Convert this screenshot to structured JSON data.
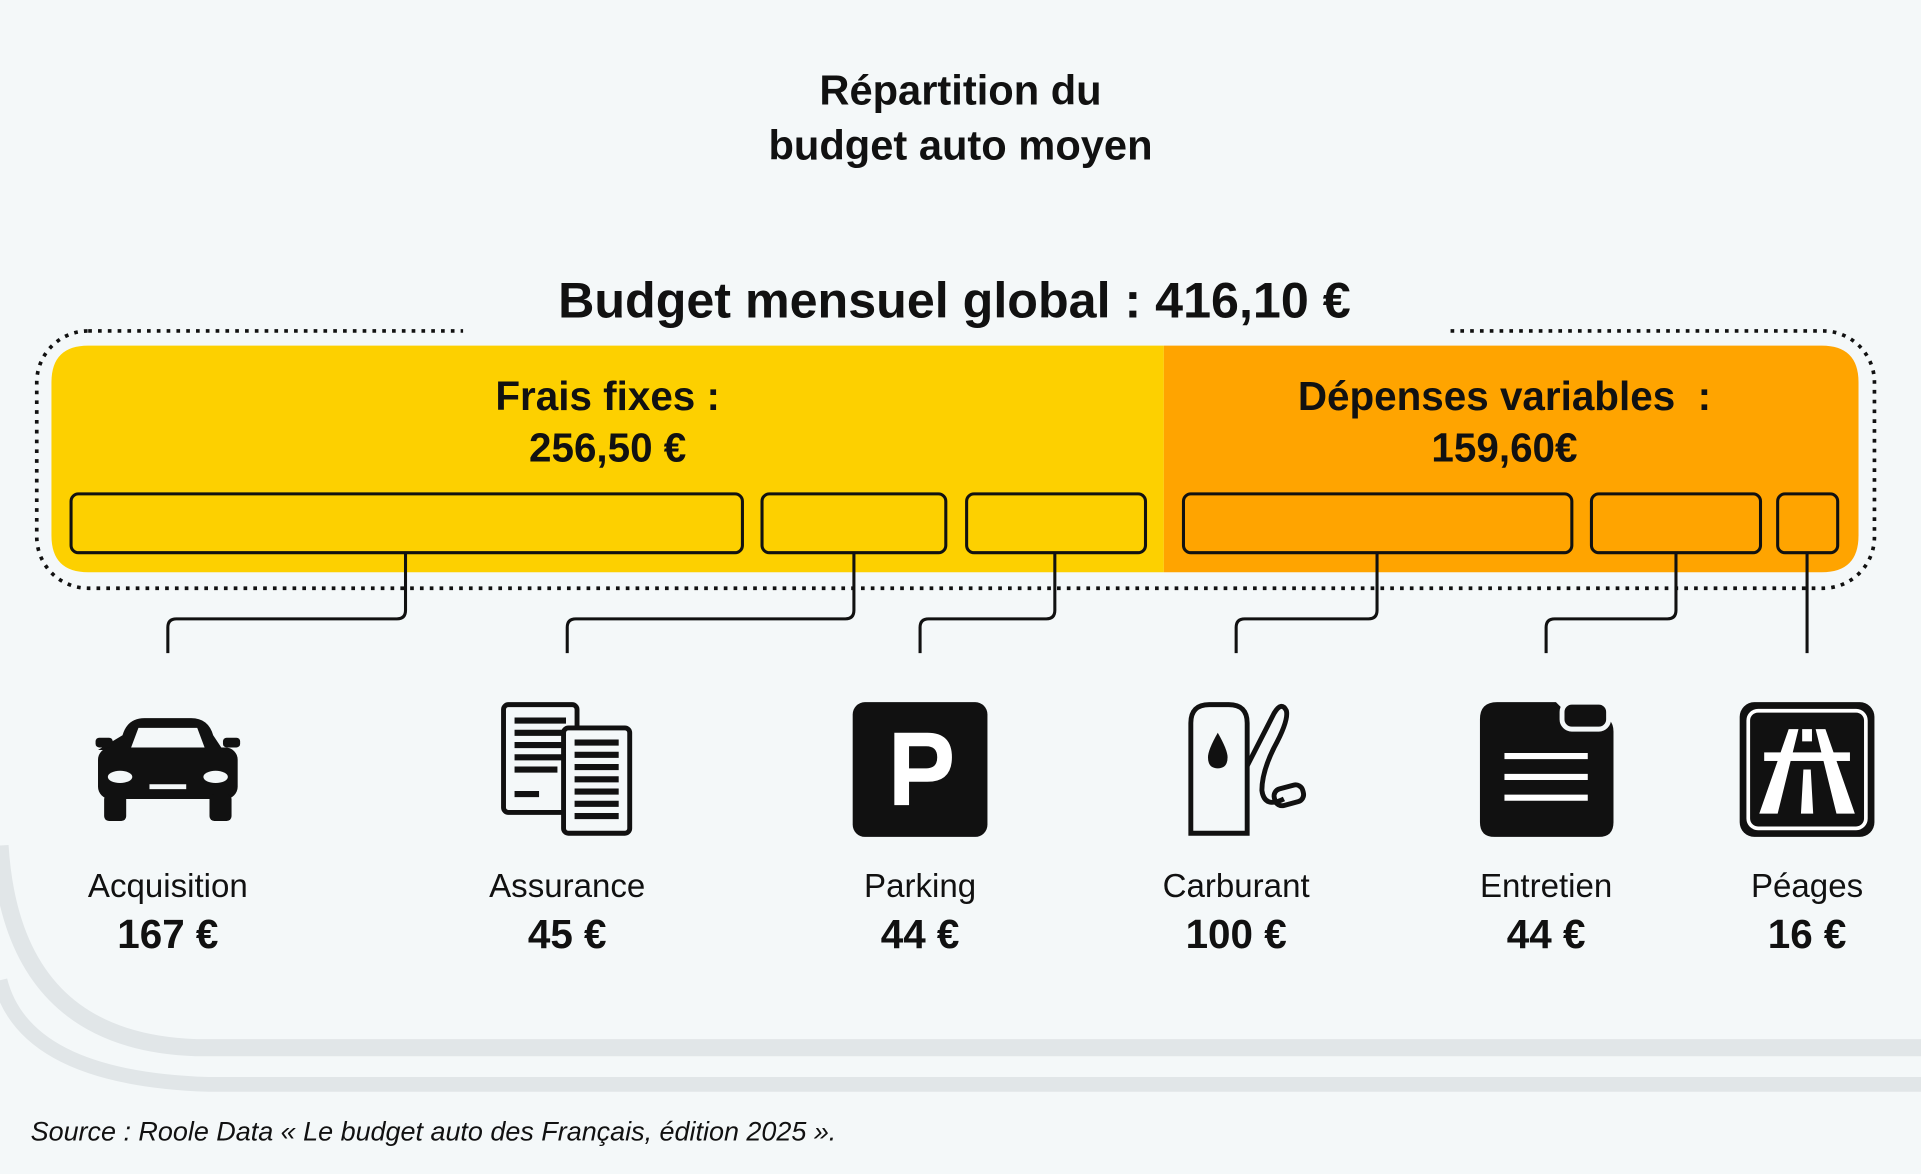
{
  "title": [
    "Répartition du",
    "budget auto moyen"
  ],
  "total": "Budget mensuel global : 416,10 €",
  "groups": [
    {
      "label": "Frais fixes :",
      "amount": "256,50 €"
    },
    {
      "label": "Dépenses variables  :",
      "amount": "159,60€"
    }
  ],
  "items": [
    {
      "label": "Acquisition",
      "amount": "167 €"
    },
    {
      "label": "Assurance",
      "amount": "45 €"
    },
    {
      "label": "Parking",
      "amount": "44 €"
    },
    {
      "label": "Carburant",
      "amount": "100 €"
    },
    {
      "label": "Entretien",
      "amount": "44 €"
    },
    {
      "label": "Péages",
      "amount": "16 €"
    }
  ],
  "source": "Source : Roole Data « Le budget auto des Français, édition 2025 »."
}
